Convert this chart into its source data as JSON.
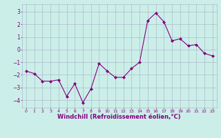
{
  "x": [
    0,
    1,
    2,
    3,
    4,
    5,
    6,
    7,
    8,
    9,
    10,
    11,
    12,
    13,
    14,
    15,
    16,
    17,
    18,
    19,
    20,
    21,
    22,
    23
  ],
  "y": [
    -1.7,
    -1.9,
    -2.5,
    -2.5,
    -2.4,
    -3.7,
    -2.7,
    -4.2,
    -3.1,
    -1.1,
    -1.7,
    -2.2,
    -2.2,
    -1.5,
    -1.0,
    2.3,
    2.9,
    2.2,
    0.7,
    0.85,
    0.3,
    0.4,
    -0.3,
    -0.5
  ],
  "line_color": "#800080",
  "marker": "D",
  "markersize": 2.0,
  "linewidth": 0.8,
  "xlabel": "Windchill (Refroidissement éolien,°C)",
  "xlabel_fontsize": 6,
  "background_color": "#cceee8",
  "grid_color": "#aabbcc",
  "tick_color": "#800080",
  "label_color": "#800080",
  "ylim": [
    -4.6,
    3.6
  ],
  "yticks": [
    -4,
    -3,
    -2,
    -1,
    0,
    1,
    2,
    3
  ],
  "xticks": [
    0,
    1,
    2,
    3,
    4,
    5,
    6,
    7,
    8,
    9,
    10,
    11,
    12,
    13,
    14,
    15,
    16,
    17,
    18,
    19,
    20,
    21,
    22,
    23
  ]
}
